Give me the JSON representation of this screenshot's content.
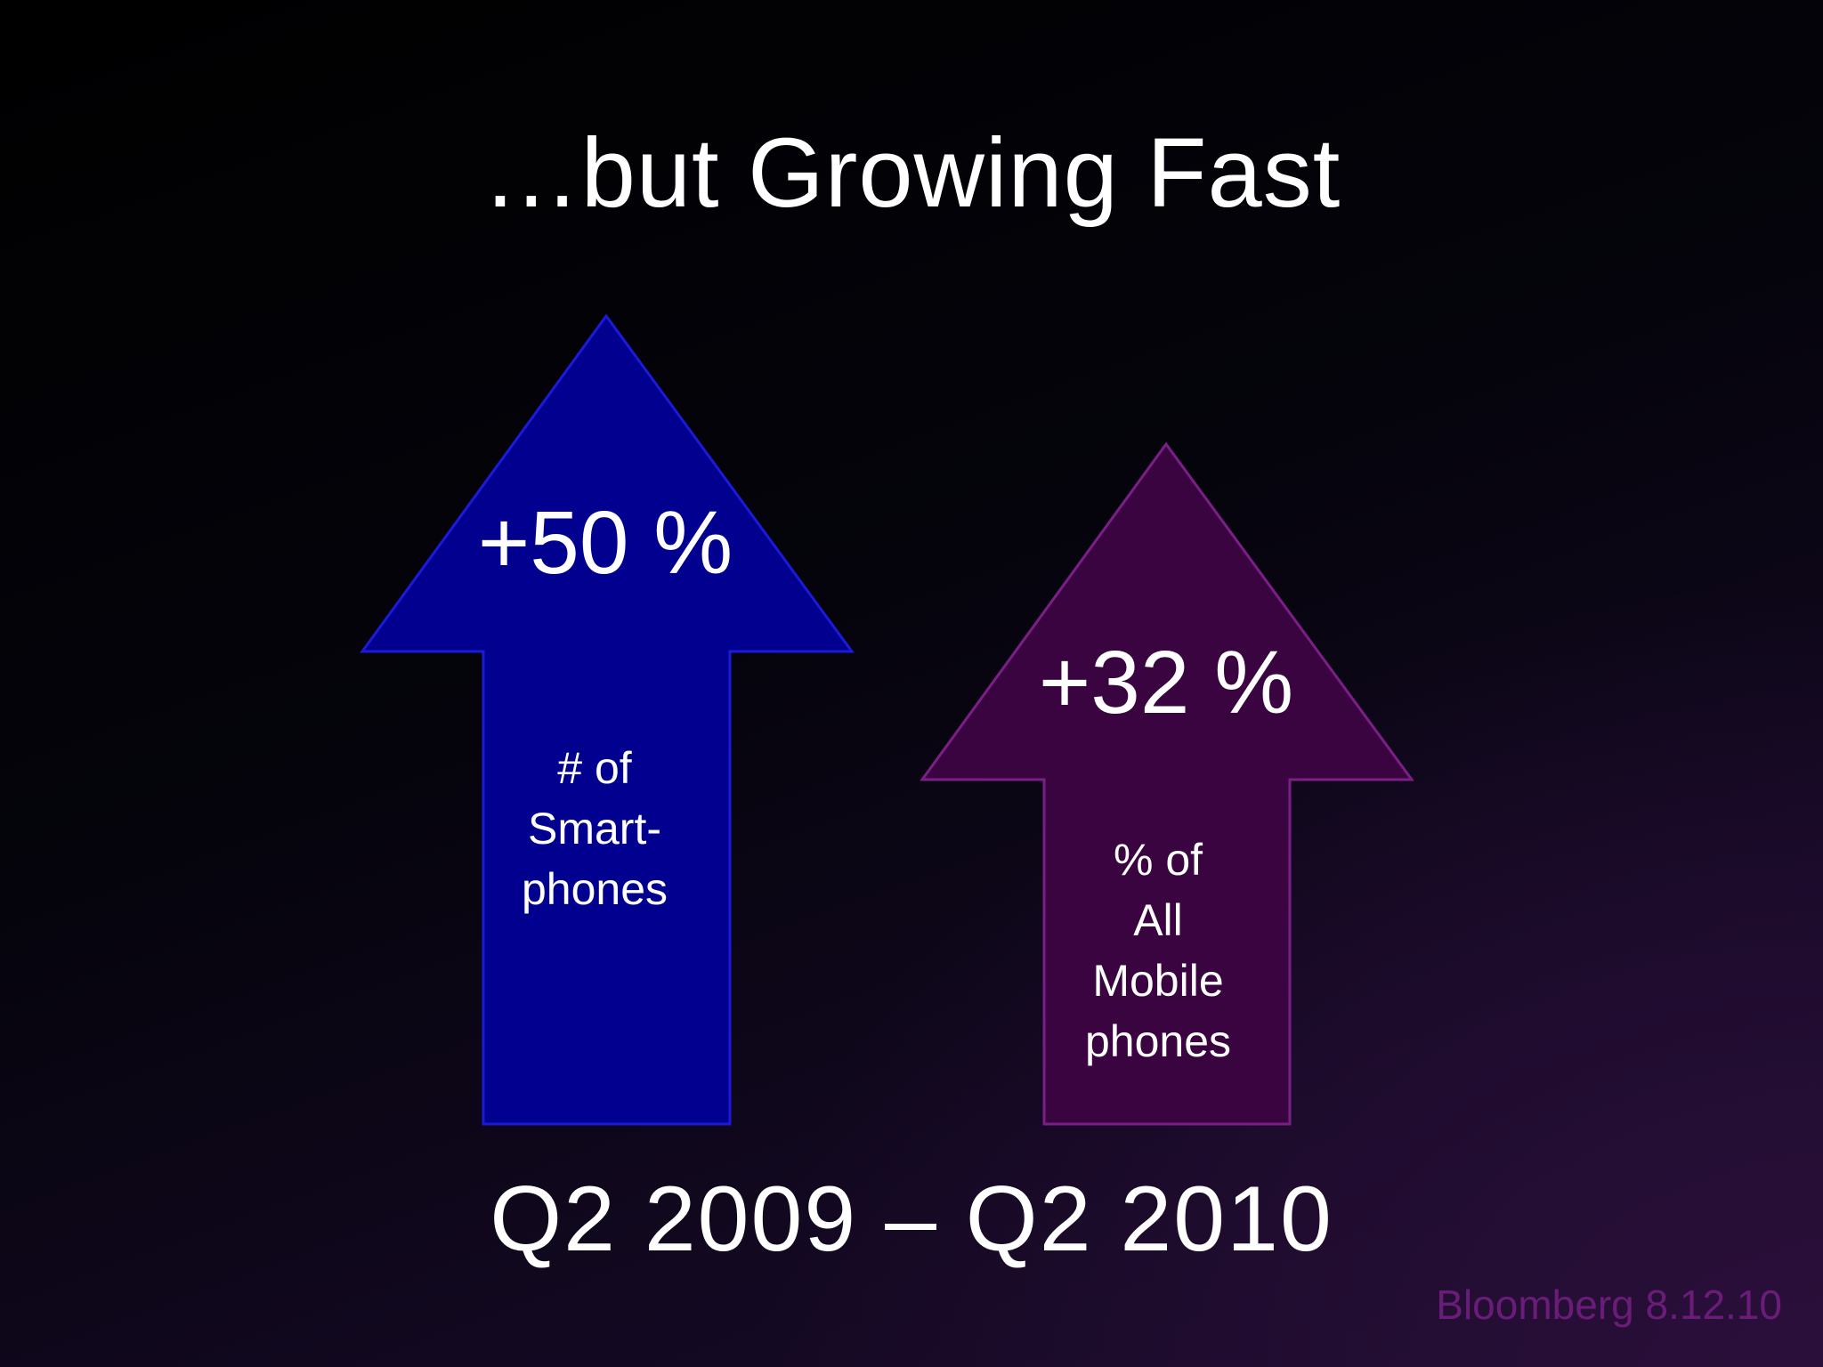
{
  "slide": {
    "title": "…but Growing Fast",
    "period": "Q2 2009 – Q2 2010",
    "source": "Bloomberg 8.12.10"
  },
  "arrows": [
    {
      "percent": "+50 %",
      "lines": [
        "# of",
        "Smart-",
        "phones"
      ],
      "fill": "#02018f",
      "stroke": "#1a1ad8"
    },
    {
      "percent": "+32 %",
      "lines": [
        "% of",
        "All",
        "Mobile",
        "phones"
      ],
      "fill": "#3a0440",
      "stroke": "#7a1f86"
    }
  ],
  "colors": {
    "background": "#000000",
    "text": "#ffffff",
    "source_text": "#6a1d78"
  }
}
